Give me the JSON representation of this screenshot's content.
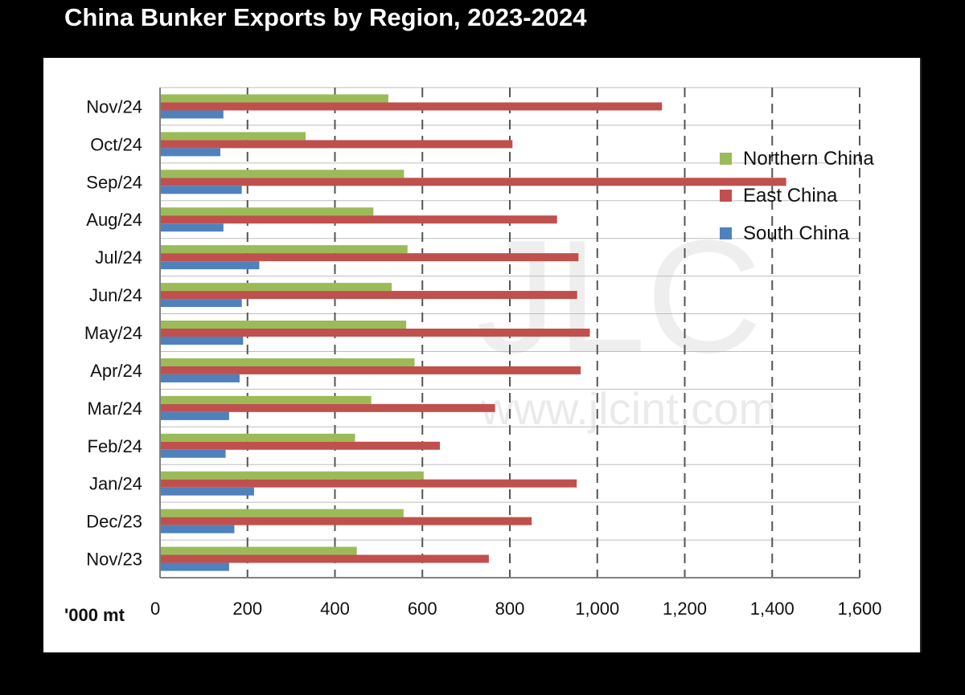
{
  "title": "China Bunker Exports by Region, 2023-2024",
  "watermark": {
    "logo_text": "JLC",
    "url_text": "www.jlcint.com"
  },
  "chart_data": {
    "type": "bar",
    "orientation": "horizontal",
    "title": "China Bunker Exports by Region, 2023-2024",
    "xlabel": "'000 mt",
    "ylabel": "",
    "xlim": [
      0,
      1600
    ],
    "x_ticks": [
      0,
      200,
      400,
      600,
      800,
      1000,
      1200,
      1400,
      1600
    ],
    "x_tick_labels": [
      "0",
      "200",
      "400",
      "600",
      "800",
      "1,000",
      "1,200",
      "1,400",
      "1,600"
    ],
    "grid": "vertical dashed",
    "legend_position": "right",
    "categories": [
      "Nov/24",
      "Oct/24",
      "Sep/24",
      "Aug/24",
      "Jul/24",
      "Jun/24",
      "May/24",
      "Apr/24",
      "Mar/24",
      "Feb/24",
      "Jan/24",
      "Dec/23",
      "Nov/23"
    ],
    "series": [
      {
        "name": "Northern China",
        "color": "#9bbb59",
        "values": [
          522,
          333,
          558,
          488,
          566,
          530,
          563,
          582,
          483,
          446,
          603,
          557,
          450
        ]
      },
      {
        "name": "East China",
        "color": "#c0504d",
        "values": [
          1148,
          806,
          1432,
          908,
          957,
          954,
          983,
          962,
          766,
          640,
          953,
          850,
          752
        ]
      },
      {
        "name": "South China",
        "color": "#4f81bd",
        "values": [
          145,
          138,
          187,
          145,
          227,
          187,
          190,
          182,
          158,
          150,
          215,
          170,
          158
        ]
      }
    ]
  }
}
